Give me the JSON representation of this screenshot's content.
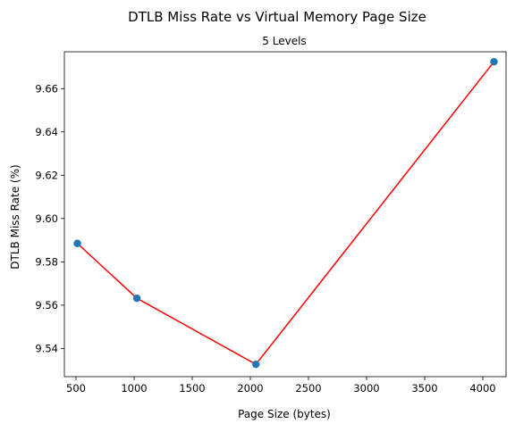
{
  "chart_data": {
    "type": "line",
    "title": "DTLB Miss Rate vs Virtual Memory Page Size",
    "subtitle": "5 Levels",
    "xlabel": "Page Size (bytes)",
    "ylabel": "DTLB Miss Rate (%)",
    "xlim": [
      400,
      4200
    ],
    "ylim": [
      9.527,
      9.677
    ],
    "grid": false,
    "legend": "none",
    "x_ticks": [
      500,
      1000,
      1500,
      2000,
      2500,
      3000,
      3500,
      4000
    ],
    "y_ticks": [
      9.54,
      9.56,
      9.58,
      9.6,
      9.62,
      9.64,
      9.66
    ],
    "series": [
      {
        "x": [
          512,
          1024,
          2048,
          4096
        ],
        "y": [
          9.5885,
          9.5632,
          9.5327,
          9.6724
        ],
        "line_color": "#ff0000",
        "marker_color": "#1f77b4"
      }
    ]
  }
}
